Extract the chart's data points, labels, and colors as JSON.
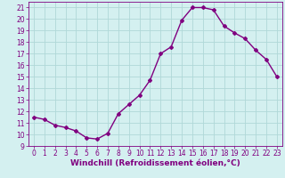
{
  "x": [
    0,
    1,
    2,
    3,
    4,
    5,
    6,
    7,
    8,
    9,
    10,
    11,
    12,
    13,
    14,
    15,
    16,
    17,
    18,
    19,
    20,
    21,
    22,
    23
  ],
  "y": [
    11.5,
    11.3,
    10.8,
    10.6,
    10.3,
    9.7,
    9.6,
    10.1,
    11.8,
    12.6,
    13.4,
    14.7,
    17.0,
    17.6,
    19.9,
    21.0,
    21.0,
    20.8,
    19.4,
    18.8,
    18.3,
    17.3,
    16.5,
    15.0
  ],
  "line_color": "#800080",
  "marker": "D",
  "marker_size": 2,
  "bg_color": "#d4f0f0",
  "grid_color": "#b0d8d8",
  "xlabel": "Windchill (Refroidissement éolien,°C)",
  "xlim": [
    -0.5,
    23.5
  ],
  "ylim": [
    9,
    21.5
  ],
  "yticks": [
    9,
    10,
    11,
    12,
    13,
    14,
    15,
    16,
    17,
    18,
    19,
    20,
    21
  ],
  "xticks": [
    0,
    1,
    2,
    3,
    4,
    5,
    6,
    7,
    8,
    9,
    10,
    11,
    12,
    13,
    14,
    15,
    16,
    17,
    18,
    19,
    20,
    21,
    22,
    23
  ],
  "tick_fontsize": 5.5,
  "xlabel_fontsize": 6.5,
  "line_width": 1.0
}
